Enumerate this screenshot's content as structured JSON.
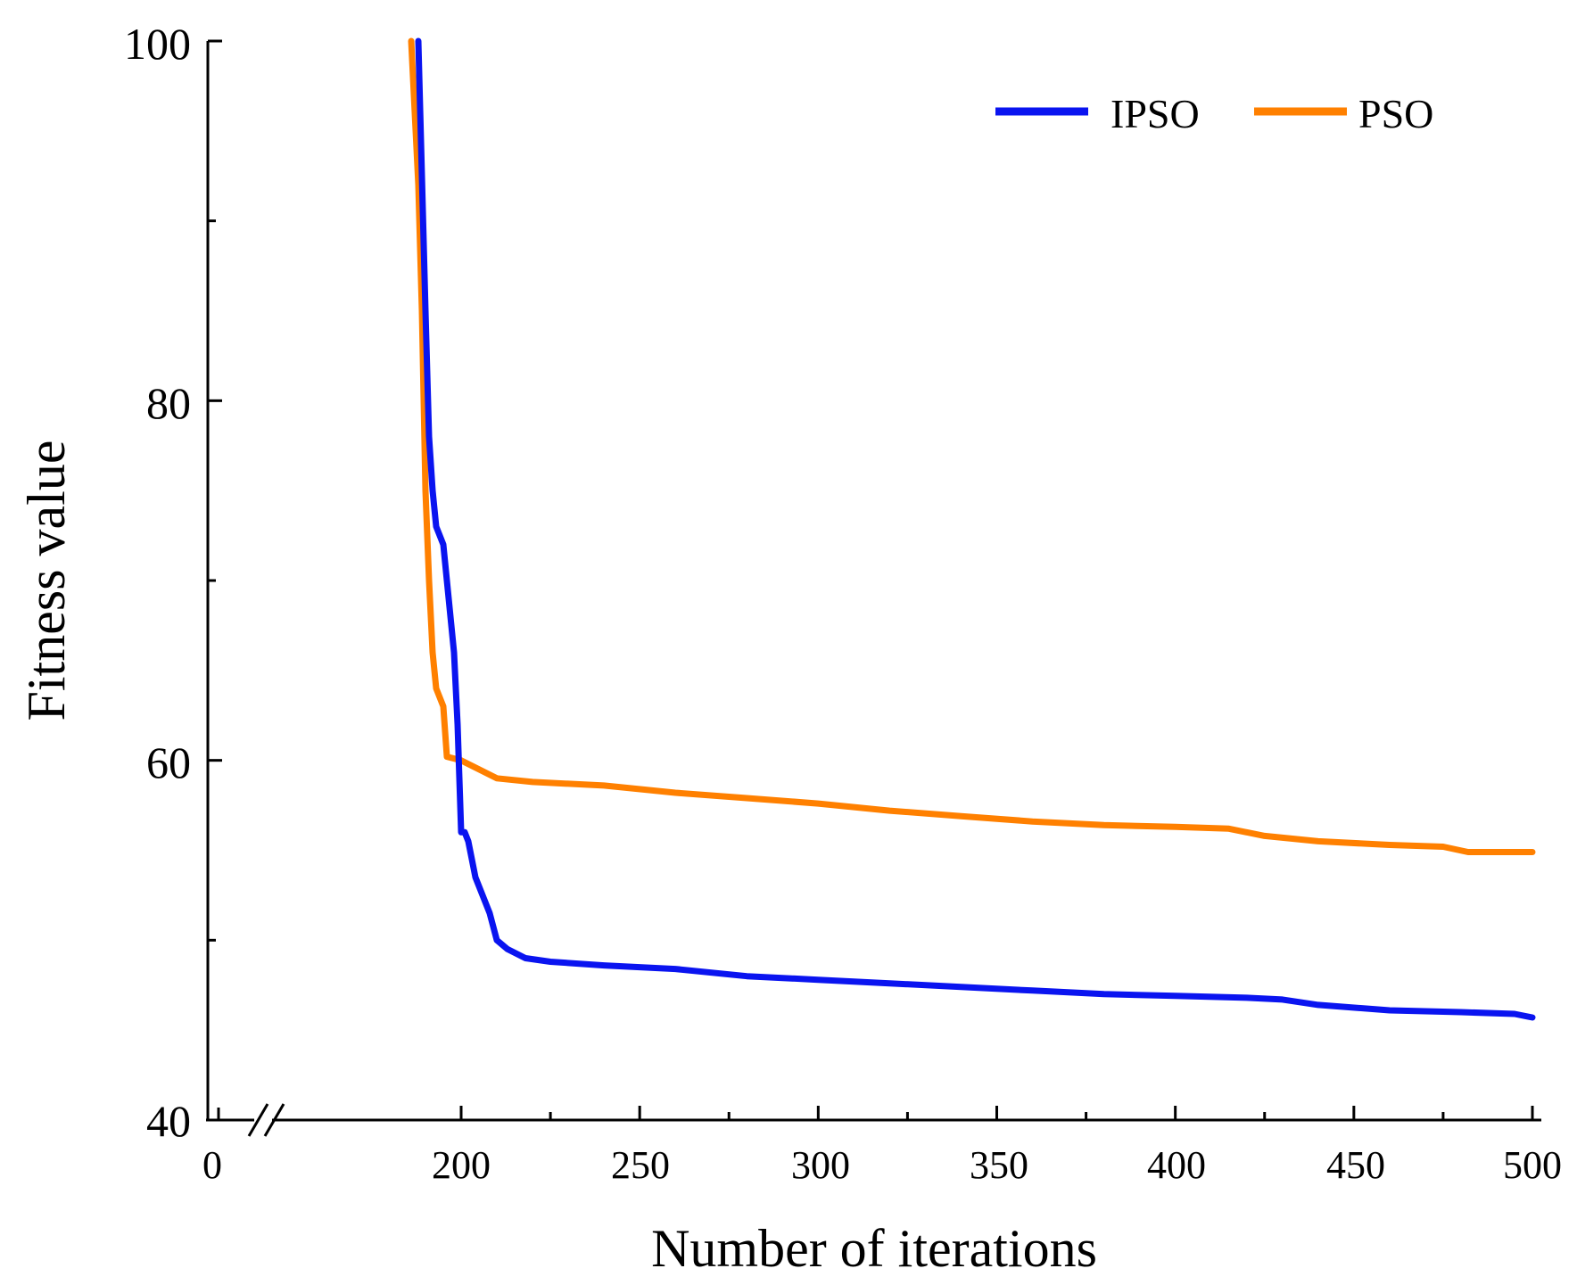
{
  "chart_data": {
    "type": "line",
    "title": "",
    "xlabel": "Number of iterations",
    "ylabel": "Fitness value",
    "ylim": [
      40,
      100
    ],
    "y_ticks": [
      "40",
      "60",
      "80",
      "100"
    ],
    "x_ticks": [
      "0",
      "200",
      "250",
      "300",
      "350",
      "400",
      "450",
      "500"
    ],
    "x_axis_break": true,
    "legend_position": "top-right",
    "grid": false,
    "series": [
      {
        "name": "IPSO",
        "color": "#0a14f0",
        "points": [
          [
            188,
            100
          ],
          [
            190,
            85
          ],
          [
            191,
            78
          ],
          [
            192,
            75
          ],
          [
            193,
            73
          ],
          [
            194,
            72.5
          ],
          [
            195,
            72
          ],
          [
            196,
            70
          ],
          [
            197,
            68
          ],
          [
            198,
            66
          ],
          [
            199,
            62
          ],
          [
            200,
            56
          ],
          [
            201,
            56
          ],
          [
            202,
            55.5
          ],
          [
            203,
            54.5
          ],
          [
            204,
            53.5
          ],
          [
            206,
            52.5
          ],
          [
            208,
            51.5
          ],
          [
            210,
            50
          ],
          [
            213,
            49.5
          ],
          [
            218,
            49
          ],
          [
            225,
            48.8
          ],
          [
            240,
            48.6
          ],
          [
            260,
            48.4
          ],
          [
            280,
            48.0
          ],
          [
            300,
            47.8
          ],
          [
            320,
            47.6
          ],
          [
            340,
            47.4
          ],
          [
            360,
            47.2
          ],
          [
            380,
            47.0
          ],
          [
            400,
            46.9
          ],
          [
            420,
            46.8
          ],
          [
            430,
            46.7
          ],
          [
            440,
            46.4
          ],
          [
            460,
            46.1
          ],
          [
            480,
            46.0
          ],
          [
            495,
            45.9
          ],
          [
            500,
            45.7
          ]
        ]
      },
      {
        "name": "PSO",
        "color": "#ff8000",
        "points": [
          [
            186,
            100
          ],
          [
            188,
            92
          ],
          [
            189,
            85
          ],
          [
            190,
            75
          ],
          [
            191,
            70
          ],
          [
            192,
            66
          ],
          [
            193,
            64
          ],
          [
            195,
            63
          ],
          [
            196,
            60.2
          ],
          [
            200,
            60
          ],
          [
            205,
            59.5
          ],
          [
            210,
            59
          ],
          [
            220,
            58.8
          ],
          [
            240,
            58.6
          ],
          [
            260,
            58.2
          ],
          [
            280,
            57.9
          ],
          [
            300,
            57.6
          ],
          [
            320,
            57.2
          ],
          [
            340,
            56.9
          ],
          [
            360,
            56.6
          ],
          [
            380,
            56.4
          ],
          [
            400,
            56.3
          ],
          [
            415,
            56.2
          ],
          [
            425,
            55.8
          ],
          [
            440,
            55.5
          ],
          [
            460,
            55.3
          ],
          [
            475,
            55.2
          ],
          [
            482,
            54.9
          ],
          [
            490,
            54.9
          ],
          [
            500,
            54.9
          ]
        ]
      }
    ]
  }
}
